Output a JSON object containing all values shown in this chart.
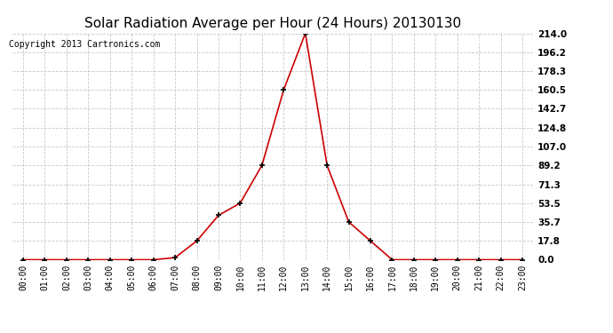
{
  "title": "Solar Radiation Average per Hour (24 Hours) 20130130",
  "copyright_text": "Copyright 2013 Cartronics.com",
  "hours": [
    "00:00",
    "01:00",
    "02:00",
    "03:00",
    "04:00",
    "05:00",
    "06:00",
    "07:00",
    "08:00",
    "09:00",
    "10:00",
    "11:00",
    "12:00",
    "13:00",
    "14:00",
    "15:00",
    "16:00",
    "17:00",
    "18:00",
    "19:00",
    "20:00",
    "21:00",
    "22:00",
    "23:00"
  ],
  "values": [
    0.0,
    0.0,
    0.0,
    0.0,
    0.0,
    0.0,
    0.0,
    2.0,
    17.8,
    42.0,
    53.5,
    89.2,
    160.5,
    214.0,
    89.2,
    35.7,
    17.8,
    0.0,
    0.0,
    0.0,
    0.0,
    0.0,
    0.0,
    0.0
  ],
  "line_color": "#cc0000",
  "marker_color": "#000000",
  "background_color": "#ffffff",
  "grid_color": "#c8c8c8",
  "ylim": [
    0.0,
    214.0
  ],
  "yticks": [
    0.0,
    17.8,
    35.7,
    53.5,
    71.3,
    89.2,
    107.0,
    124.8,
    142.7,
    160.5,
    178.3,
    196.2,
    214.0
  ],
  "title_fontsize": 11,
  "copyright_fontsize": 7,
  "legend_bg_color": "#cc0000",
  "legend_text_color": "#ffffff",
  "tick_labelsize": 7.5,
  "xtick_labelsize": 7
}
